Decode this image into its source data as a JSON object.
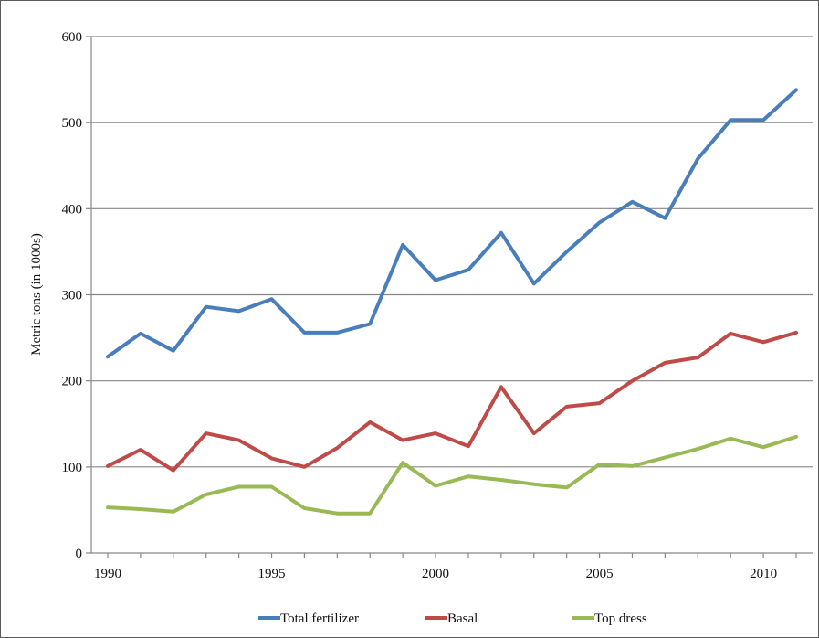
{
  "chart_data": {
    "type": "line",
    "title": "",
    "xlabel": "",
    "ylabel": "Metric tons (in 1000s)",
    "x": [
      1990,
      1991,
      1992,
      1993,
      1994,
      1995,
      1996,
      1997,
      1998,
      1999,
      2000,
      2001,
      2002,
      2003,
      2004,
      2005,
      2006,
      2007,
      2008,
      2009,
      2010,
      2011
    ],
    "x_ticks": [
      1990,
      1995,
      2000,
      2005,
      2010
    ],
    "y_ticks": [
      0,
      100,
      200,
      300,
      400,
      500,
      600
    ],
    "xlim": [
      1990,
      2011
    ],
    "ylim": [
      0,
      600
    ],
    "grid": "horizontal",
    "legend_position": "bottom",
    "series": [
      {
        "name": "Total fertilizer",
        "color": "#4a7ebb",
        "values": [
          228,
          255,
          235,
          286,
          281,
          295,
          256,
          256,
          266,
          358,
          317,
          329,
          372,
          313,
          350,
          384,
          408,
          389,
          458,
          503,
          503,
          538
        ]
      },
      {
        "name": "Basal",
        "color": "#be4b48",
        "values": [
          101,
          120,
          96,
          139,
          131,
          110,
          100,
          122,
          152,
          131,
          139,
          124,
          193,
          139,
          170,
          174,
          200,
          221,
          227,
          255,
          245,
          256
        ]
      },
      {
        "name": "Top dress",
        "color": "#98b954",
        "values": [
          53,
          51,
          48,
          68,
          77,
          77,
          52,
          46,
          46,
          105,
          78,
          89,
          85,
          80,
          76,
          103,
          101,
          111,
          121,
          133,
          123,
          135
        ]
      }
    ]
  }
}
